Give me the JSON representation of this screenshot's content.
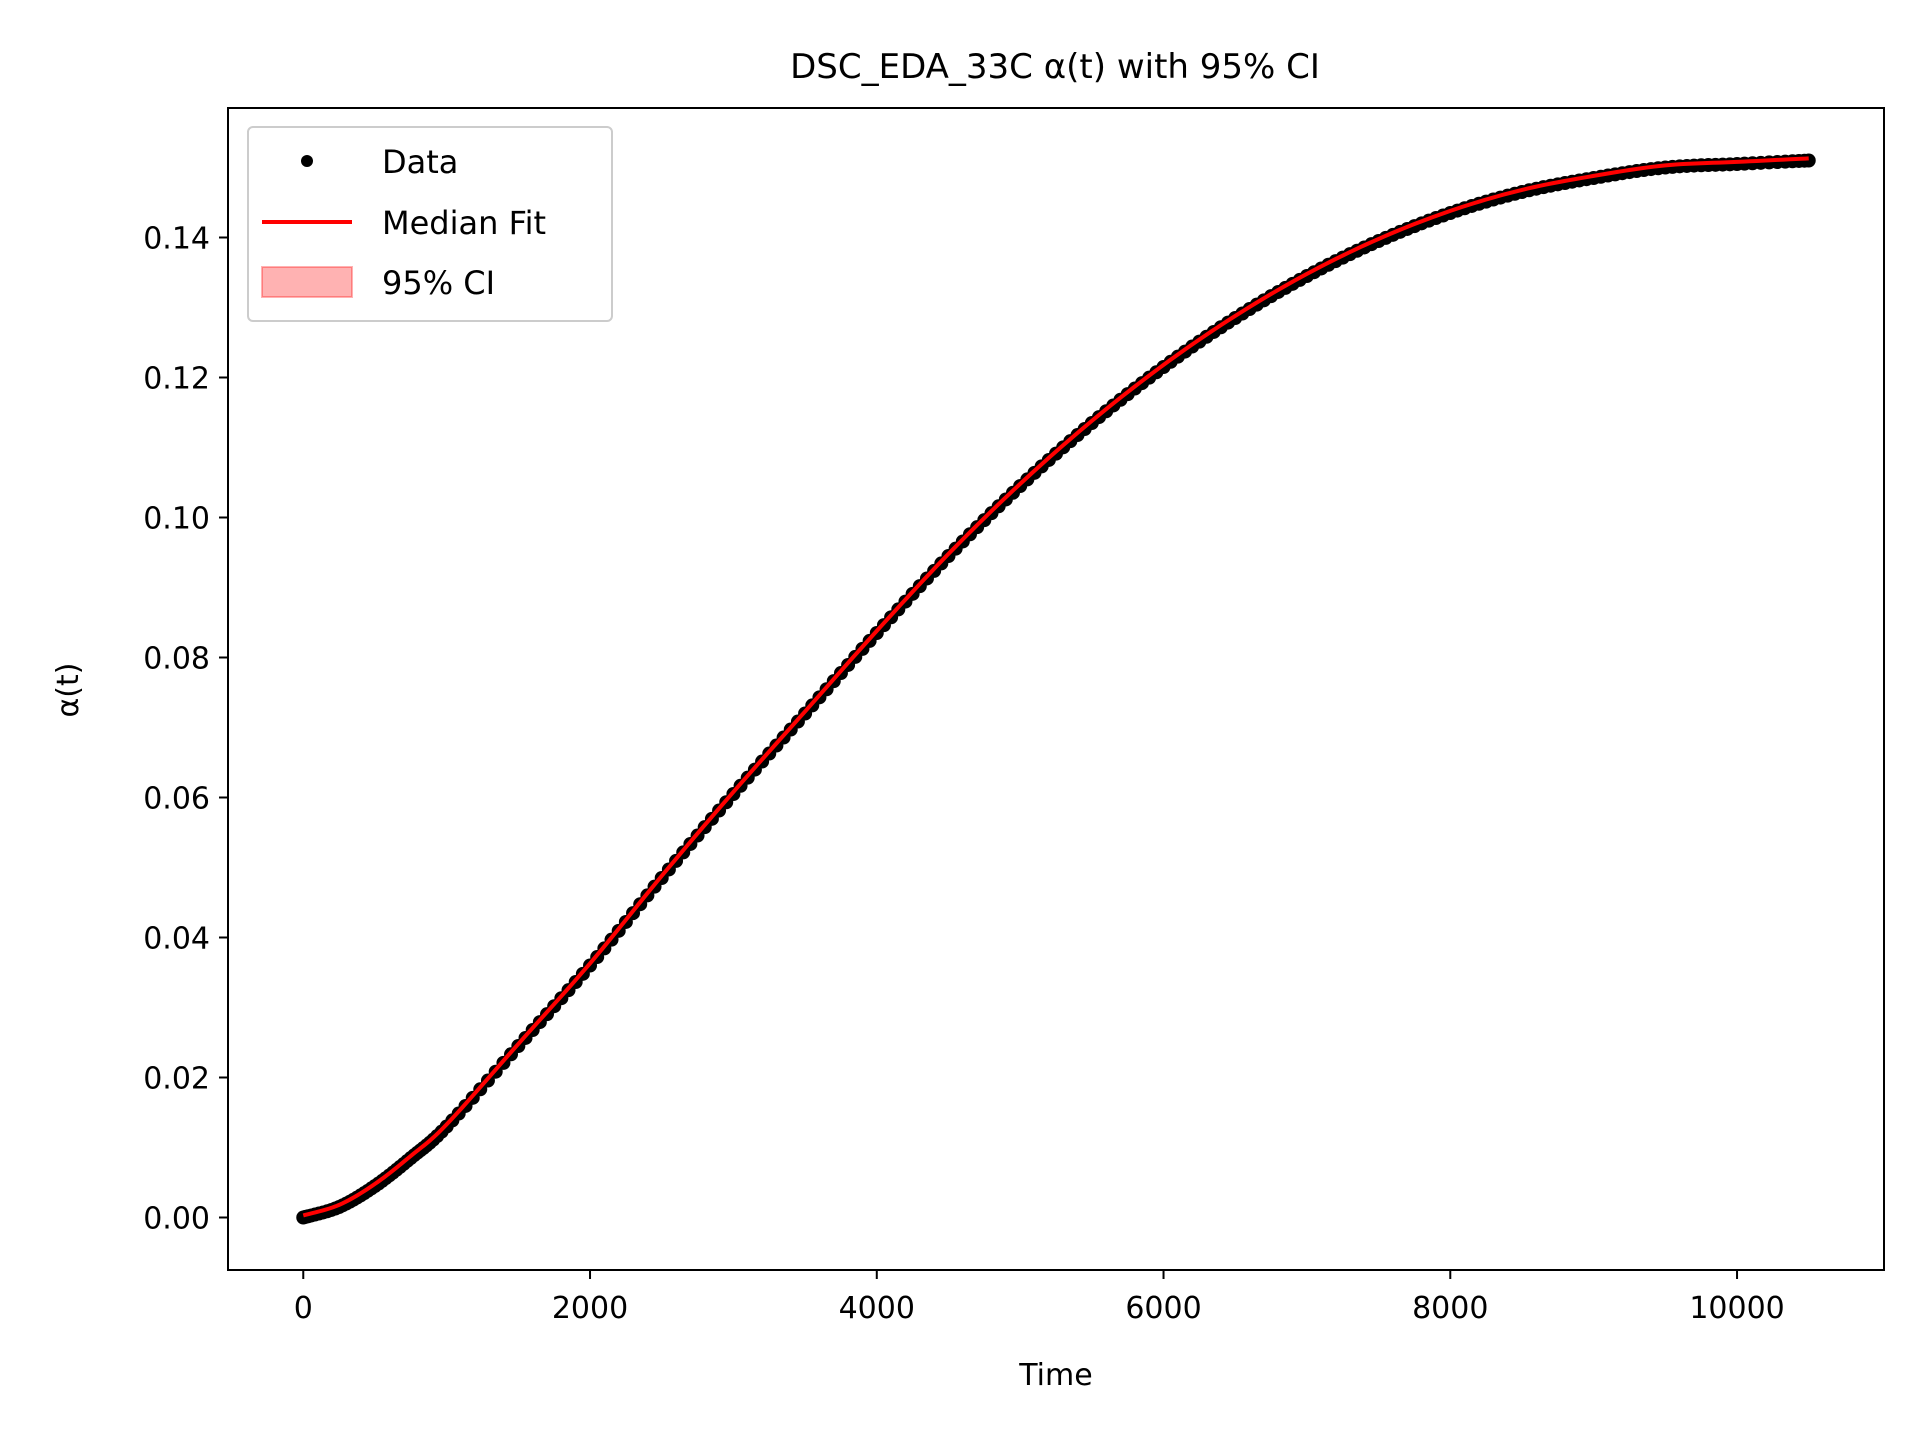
{
  "chart_data": {
    "type": "line",
    "title": "DSC_EDA_33C α(t) with 95% CI",
    "xlabel": "Time",
    "ylabel": "α(t)",
    "xlim": [
      -525,
      11025
    ],
    "ylim": [
      -0.0075,
      0.1585
    ],
    "xticks": [
      0,
      2000,
      4000,
      6000,
      8000,
      10000
    ],
    "xtick_labels": [
      "0",
      "2000",
      "4000",
      "6000",
      "8000",
      "10000"
    ],
    "yticks": [
      0.0,
      0.02,
      0.04,
      0.06,
      0.08,
      0.1,
      0.12,
      0.14
    ],
    "ytick_labels": [
      "0.00",
      "0.02",
      "0.04",
      "0.06",
      "0.08",
      "0.10",
      "0.12",
      "0.14"
    ],
    "grid": false,
    "legend_position": "upper-left",
    "legend": [
      {
        "label": "Data",
        "kind": "marker",
        "color": "#000000"
      },
      {
        "label": "Median Fit",
        "kind": "line",
        "color": "#ff0000"
      },
      {
        "label": "95% CI",
        "kind": "patch",
        "color": "#ff0000"
      }
    ],
    "series": [
      {
        "name": "Data",
        "style": "points",
        "color": "#000000",
        "x": [
          0,
          250,
          500,
          750,
          1000,
          1500,
          2000,
          2500,
          3000,
          3500,
          4000,
          4500,
          5000,
          5500,
          6000,
          6500,
          7000,
          7500,
          8000,
          8500,
          9000,
          9500,
          10000,
          10500
        ],
        "y": [
          0.0,
          0.0015,
          0.0045,
          0.0085,
          0.013,
          0.0245,
          0.036,
          0.0485,
          0.0605,
          0.072,
          0.0835,
          0.0945,
          0.1045,
          0.1135,
          0.1215,
          0.1285,
          0.1345,
          0.1395,
          0.1435,
          0.1465,
          0.1485,
          0.15,
          0.1505,
          0.151
        ]
      },
      {
        "name": "Median Fit",
        "style": "line",
        "color": "#ff0000",
        "x": [
          0,
          250,
          500,
          750,
          1000,
          1500,
          2000,
          2500,
          3000,
          3500,
          4000,
          4500,
          5000,
          5500,
          6000,
          6500,
          7000,
          7500,
          8000,
          8500,
          9000,
          9500,
          10000,
          10500
        ],
        "y": [
          0.0003,
          0.0018,
          0.0048,
          0.0088,
          0.0133,
          0.0248,
          0.0363,
          0.0488,
          0.0608,
          0.0723,
          0.0838,
          0.0948,
          0.1048,
          0.1138,
          0.1218,
          0.1288,
          0.1348,
          0.1398,
          0.1438,
          0.1468,
          0.1488,
          0.1503,
          0.1508,
          0.1513
        ]
      },
      {
        "name": "95% CI",
        "style": "band",
        "color": "#ff0000",
        "x": [
          0,
          250,
          500,
          750,
          1000,
          1500,
          2000,
          2500,
          3000,
          3500,
          4000,
          4500,
          5000,
          5500,
          6000,
          6500,
          7000,
          7500,
          8000,
          8500,
          9000,
          9500,
          10000,
          10500
        ],
        "lower": [
          0.0002,
          0.0017,
          0.0047,
          0.0087,
          0.0132,
          0.0247,
          0.0362,
          0.0487,
          0.0607,
          0.0722,
          0.0837,
          0.0947,
          0.1047,
          0.1137,
          0.1217,
          0.1287,
          0.1347,
          0.1397,
          0.1437,
          0.1467,
          0.1487,
          0.1502,
          0.1507,
          0.1512
        ],
        "upper": [
          0.0004,
          0.0019,
          0.0049,
          0.0089,
          0.0134,
          0.0249,
          0.0364,
          0.0489,
          0.0609,
          0.0724,
          0.0839,
          0.0949,
          0.1049,
          0.1139,
          0.1219,
          0.1289,
          0.1349,
          0.1399,
          0.1439,
          0.1469,
          0.1489,
          0.1504,
          0.1509,
          0.1514
        ]
      }
    ]
  }
}
